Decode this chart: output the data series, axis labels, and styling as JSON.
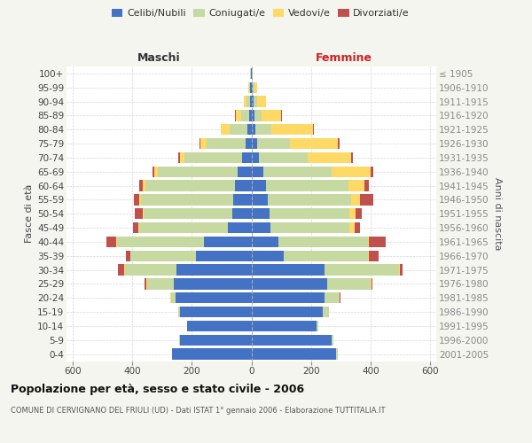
{
  "age_groups": [
    "0-4",
    "5-9",
    "10-14",
    "15-19",
    "20-24",
    "25-29",
    "30-34",
    "35-39",
    "40-44",
    "45-49",
    "50-54",
    "55-59",
    "60-64",
    "65-69",
    "70-74",
    "75-79",
    "80-84",
    "85-89",
    "90-94",
    "95-99",
    "100+"
  ],
  "birth_years": [
    "2001-2005",
    "1996-2000",
    "1991-1995",
    "1986-1990",
    "1981-1985",
    "1976-1980",
    "1971-1975",
    "1966-1970",
    "1961-1965",
    "1956-1960",
    "1951-1955",
    "1946-1950",
    "1941-1945",
    "1936-1940",
    "1931-1935",
    "1926-1930",
    "1921-1925",
    "1916-1920",
    "1911-1915",
    "1906-1910",
    "≤ 1905"
  ],
  "male": {
    "celibi": [
      265,
      240,
      215,
      240,
      255,
      260,
      250,
      185,
      160,
      80,
      65,
      60,
      55,
      45,
      30,
      20,
      12,
      8,
      5,
      3,
      2
    ],
    "coniugati": [
      2,
      2,
      2,
      5,
      15,
      90,
      175,
      220,
      290,
      295,
      295,
      310,
      300,
      270,
      195,
      130,
      60,
      25,
      10,
      5,
      1
    ],
    "vedovi": [
      0,
      0,
      0,
      0,
      1,
      2,
      2,
      2,
      2,
      3,
      5,
      5,
      10,
      10,
      15,
      20,
      30,
      20,
      10,
      2,
      0
    ],
    "divorziati": [
      0,
      0,
      0,
      0,
      2,
      5,
      20,
      15,
      35,
      20,
      25,
      20,
      12,
      8,
      5,
      3,
      2,
      2,
      0,
      0,
      0
    ]
  },
  "female": {
    "nubili": [
      285,
      270,
      220,
      240,
      245,
      255,
      245,
      110,
      90,
      65,
      60,
      55,
      50,
      40,
      25,
      20,
      12,
      10,
      8,
      4,
      2
    ],
    "coniugate": [
      5,
      5,
      5,
      20,
      50,
      145,
      250,
      280,
      300,
      265,
      270,
      280,
      275,
      230,
      165,
      110,
      55,
      25,
      12,
      5,
      1
    ],
    "vedove": [
      0,
      0,
      0,
      0,
      1,
      2,
      2,
      3,
      5,
      15,
      20,
      30,
      55,
      130,
      145,
      160,
      140,
      65,
      30,
      10,
      2
    ],
    "divorziate": [
      0,
      0,
      0,
      0,
      2,
      5,
      10,
      35,
      55,
      20,
      20,
      45,
      15,
      8,
      5,
      5,
      3,
      2,
      0,
      0,
      0
    ]
  },
  "colors": {
    "celibi": "#4472C4",
    "coniugati": "#C5D9A0",
    "vedovi": "#FFD966",
    "divorziati": "#C0504D"
  },
  "xlim": 620,
  "title": "Popolazione per età, sesso e stato civile - 2006",
  "subtitle": "COMUNE DI CERVIGNANO DEL FRIULI (UD) - Dati ISTAT 1° gennaio 2006 - Elaborazione TUTTITALIA.IT",
  "ylabel_left": "Fasce di età",
  "ylabel_right": "Anni di nascita",
  "xlabel_left": "Maschi",
  "xlabel_right": "Femmine",
  "bg_color": "#f5f5f0",
  "plot_bg": "#ffffff",
  "grid_color": "#cccccc"
}
